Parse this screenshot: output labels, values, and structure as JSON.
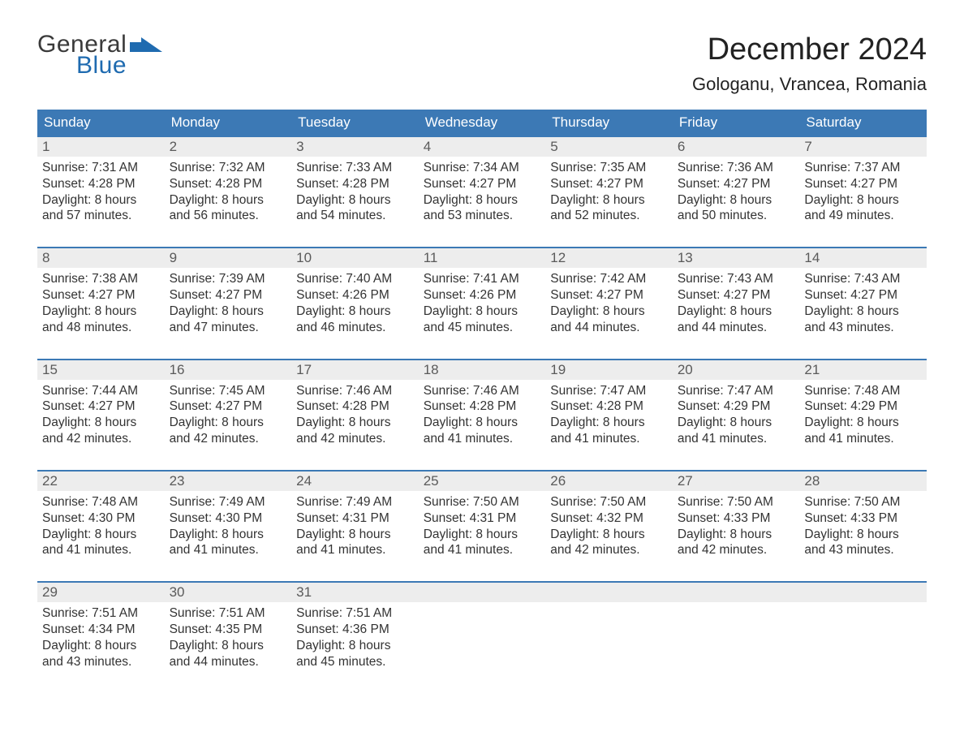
{
  "brand": {
    "word1": "General",
    "word2": "Blue",
    "word1_color": "#3a3a3a",
    "word2_color": "#1f6bb0",
    "shape_color": "#1f6bb0"
  },
  "title": "December 2024",
  "location": "Gologanu, Vrancea, Romania",
  "colors": {
    "header_bg": "#3c79b5",
    "header_text": "#ffffff",
    "week_border": "#3c79b5",
    "daynum_bg": "#ededed",
    "daynum_text": "#5a5a5a",
    "body_text": "#333333",
    "page_bg": "#ffffff"
  },
  "typography": {
    "title_fontsize": 38,
    "location_fontsize": 22,
    "day_header_fontsize": 17,
    "cell_fontsize": 15.5
  },
  "day_names": [
    "Sunday",
    "Monday",
    "Tuesday",
    "Wednesday",
    "Thursday",
    "Friday",
    "Saturday"
  ],
  "weeks": [
    [
      {
        "n": "1",
        "sunrise": "Sunrise: 7:31 AM",
        "sunset": "Sunset: 4:28 PM",
        "daylight": "Daylight: 8 hours and 57 minutes."
      },
      {
        "n": "2",
        "sunrise": "Sunrise: 7:32 AM",
        "sunset": "Sunset: 4:28 PM",
        "daylight": "Daylight: 8 hours and 56 minutes."
      },
      {
        "n": "3",
        "sunrise": "Sunrise: 7:33 AM",
        "sunset": "Sunset: 4:28 PM",
        "daylight": "Daylight: 8 hours and 54 minutes."
      },
      {
        "n": "4",
        "sunrise": "Sunrise: 7:34 AM",
        "sunset": "Sunset: 4:27 PM",
        "daylight": "Daylight: 8 hours and 53 minutes."
      },
      {
        "n": "5",
        "sunrise": "Sunrise: 7:35 AM",
        "sunset": "Sunset: 4:27 PM",
        "daylight": "Daylight: 8 hours and 52 minutes."
      },
      {
        "n": "6",
        "sunrise": "Sunrise: 7:36 AM",
        "sunset": "Sunset: 4:27 PM",
        "daylight": "Daylight: 8 hours and 50 minutes."
      },
      {
        "n": "7",
        "sunrise": "Sunrise: 7:37 AM",
        "sunset": "Sunset: 4:27 PM",
        "daylight": "Daylight: 8 hours and 49 minutes."
      }
    ],
    [
      {
        "n": "8",
        "sunrise": "Sunrise: 7:38 AM",
        "sunset": "Sunset: 4:27 PM",
        "daylight": "Daylight: 8 hours and 48 minutes."
      },
      {
        "n": "9",
        "sunrise": "Sunrise: 7:39 AM",
        "sunset": "Sunset: 4:27 PM",
        "daylight": "Daylight: 8 hours and 47 minutes."
      },
      {
        "n": "10",
        "sunrise": "Sunrise: 7:40 AM",
        "sunset": "Sunset: 4:26 PM",
        "daylight": "Daylight: 8 hours and 46 minutes."
      },
      {
        "n": "11",
        "sunrise": "Sunrise: 7:41 AM",
        "sunset": "Sunset: 4:26 PM",
        "daylight": "Daylight: 8 hours and 45 minutes."
      },
      {
        "n": "12",
        "sunrise": "Sunrise: 7:42 AM",
        "sunset": "Sunset: 4:27 PM",
        "daylight": "Daylight: 8 hours and 44 minutes."
      },
      {
        "n": "13",
        "sunrise": "Sunrise: 7:43 AM",
        "sunset": "Sunset: 4:27 PM",
        "daylight": "Daylight: 8 hours and 44 minutes."
      },
      {
        "n": "14",
        "sunrise": "Sunrise: 7:43 AM",
        "sunset": "Sunset: 4:27 PM",
        "daylight": "Daylight: 8 hours and 43 minutes."
      }
    ],
    [
      {
        "n": "15",
        "sunrise": "Sunrise: 7:44 AM",
        "sunset": "Sunset: 4:27 PM",
        "daylight": "Daylight: 8 hours and 42 minutes."
      },
      {
        "n": "16",
        "sunrise": "Sunrise: 7:45 AM",
        "sunset": "Sunset: 4:27 PM",
        "daylight": "Daylight: 8 hours and 42 minutes."
      },
      {
        "n": "17",
        "sunrise": "Sunrise: 7:46 AM",
        "sunset": "Sunset: 4:28 PM",
        "daylight": "Daylight: 8 hours and 42 minutes."
      },
      {
        "n": "18",
        "sunrise": "Sunrise: 7:46 AM",
        "sunset": "Sunset: 4:28 PM",
        "daylight": "Daylight: 8 hours and 41 minutes."
      },
      {
        "n": "19",
        "sunrise": "Sunrise: 7:47 AM",
        "sunset": "Sunset: 4:28 PM",
        "daylight": "Daylight: 8 hours and 41 minutes."
      },
      {
        "n": "20",
        "sunrise": "Sunrise: 7:47 AM",
        "sunset": "Sunset: 4:29 PM",
        "daylight": "Daylight: 8 hours and 41 minutes."
      },
      {
        "n": "21",
        "sunrise": "Sunrise: 7:48 AM",
        "sunset": "Sunset: 4:29 PM",
        "daylight": "Daylight: 8 hours and 41 minutes."
      }
    ],
    [
      {
        "n": "22",
        "sunrise": "Sunrise: 7:48 AM",
        "sunset": "Sunset: 4:30 PM",
        "daylight": "Daylight: 8 hours and 41 minutes."
      },
      {
        "n": "23",
        "sunrise": "Sunrise: 7:49 AM",
        "sunset": "Sunset: 4:30 PM",
        "daylight": "Daylight: 8 hours and 41 minutes."
      },
      {
        "n": "24",
        "sunrise": "Sunrise: 7:49 AM",
        "sunset": "Sunset: 4:31 PM",
        "daylight": "Daylight: 8 hours and 41 minutes."
      },
      {
        "n": "25",
        "sunrise": "Sunrise: 7:50 AM",
        "sunset": "Sunset: 4:31 PM",
        "daylight": "Daylight: 8 hours and 41 minutes."
      },
      {
        "n": "26",
        "sunrise": "Sunrise: 7:50 AM",
        "sunset": "Sunset: 4:32 PM",
        "daylight": "Daylight: 8 hours and 42 minutes."
      },
      {
        "n": "27",
        "sunrise": "Sunrise: 7:50 AM",
        "sunset": "Sunset: 4:33 PM",
        "daylight": "Daylight: 8 hours and 42 minutes."
      },
      {
        "n": "28",
        "sunrise": "Sunrise: 7:50 AM",
        "sunset": "Sunset: 4:33 PM",
        "daylight": "Daylight: 8 hours and 43 minutes."
      }
    ],
    [
      {
        "n": "29",
        "sunrise": "Sunrise: 7:51 AM",
        "sunset": "Sunset: 4:34 PM",
        "daylight": "Daylight: 8 hours and 43 minutes."
      },
      {
        "n": "30",
        "sunrise": "Sunrise: 7:51 AM",
        "sunset": "Sunset: 4:35 PM",
        "daylight": "Daylight: 8 hours and 44 minutes."
      },
      {
        "n": "31",
        "sunrise": "Sunrise: 7:51 AM",
        "sunset": "Sunset: 4:36 PM",
        "daylight": "Daylight: 8 hours and 45 minutes."
      },
      null,
      null,
      null,
      null
    ]
  ]
}
